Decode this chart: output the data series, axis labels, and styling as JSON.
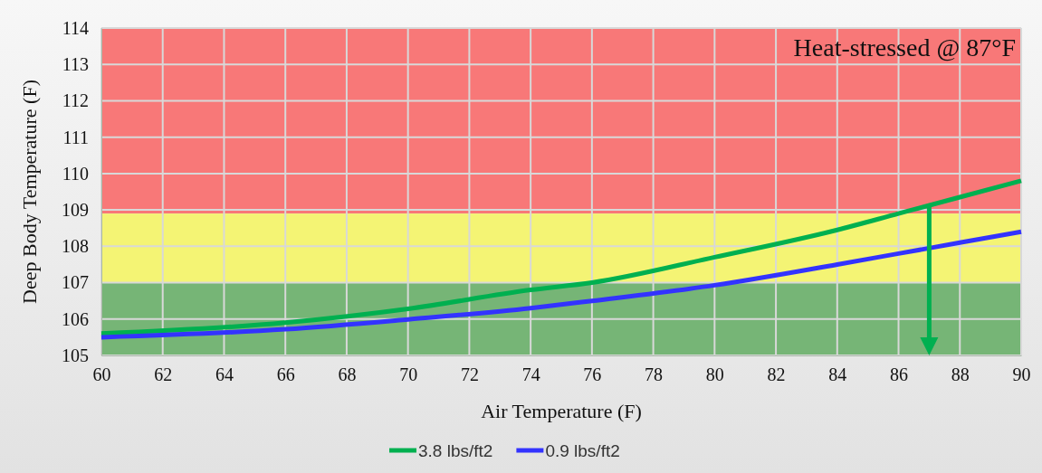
{
  "chart_data": {
    "type": "line",
    "xlabel": "Air Temperature (F)",
    "ylabel": "Deep Body Temperature (F)",
    "xlim": [
      60,
      90
    ],
    "xticks": [
      60,
      62,
      64,
      66,
      68,
      70,
      72,
      74,
      76,
      78,
      80,
      82,
      84,
      86,
      88,
      90
    ],
    "ylim": [
      105,
      114
    ],
    "yticks": [
      105,
      106,
      107,
      108,
      109,
      110,
      111,
      112,
      113,
      114
    ],
    "grid": true,
    "legend": "bottom",
    "marker": "none",
    "line_style": "solid",
    "x": [
      60,
      66,
      70,
      74,
      76,
      80,
      84,
      86,
      88,
      90
    ],
    "series": [
      {
        "name": "3.8 lbs/ft2",
        "color": "#00b050",
        "values": [
          105.6,
          105.9,
          106.28,
          106.8,
          107.0,
          107.7,
          108.45,
          108.9,
          109.35,
          109.8
        ]
      },
      {
        "name": "0.9 lbs/ft2",
        "color": "#3333ff",
        "values": [
          105.5,
          105.72,
          105.99,
          106.3,
          106.5,
          106.93,
          107.5,
          107.8,
          108.1,
          108.4
        ]
      }
    ],
    "bands": [
      {
        "axis": "y",
        "from": 108.9,
        "to": 114,
        "color": "#f87878"
      },
      {
        "axis": "y",
        "from": 107,
        "to": 108.9,
        "color": "#f4f474"
      },
      {
        "axis": "y",
        "from": 105,
        "to": 107,
        "color": "#76b576"
      }
    ],
    "ref_lines": [
      {
        "axis": "x",
        "value": 87,
        "color": "#00b050"
      }
    ],
    "annotations": [
      "Heat-stressed @ 87°F"
    ]
  }
}
